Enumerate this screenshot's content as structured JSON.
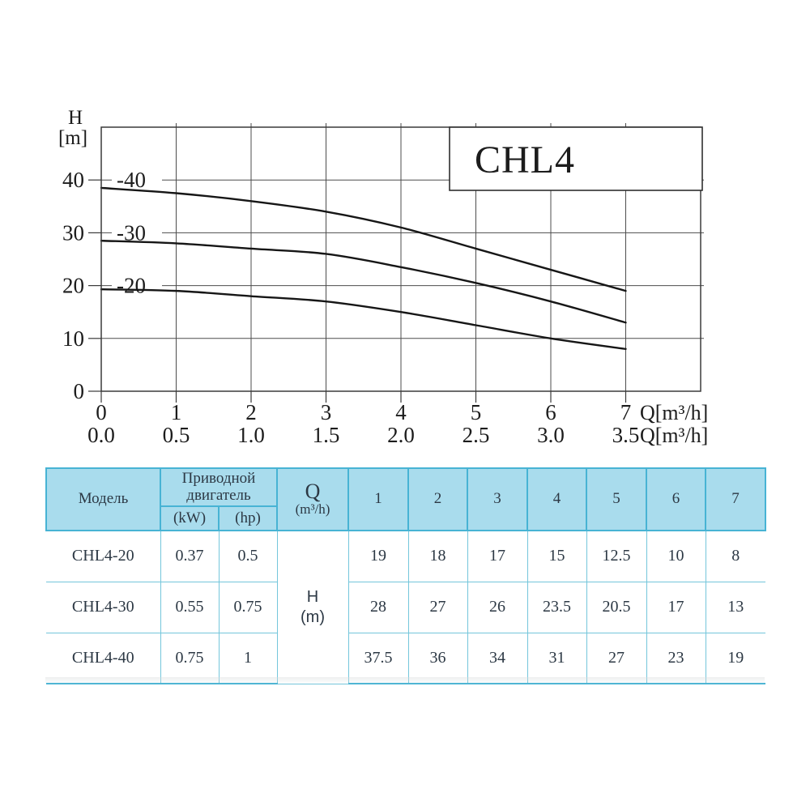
{
  "title": "CHL4",
  "chart": {
    "y_axis_label_line1": "H",
    "y_axis_label_line2": "[m]",
    "x_axis_unit_row1": "Q[m³/h]",
    "x_axis_unit_row2": "Q[m³/h]",
    "y_ticks": [
      "0",
      "10",
      "20",
      "30",
      "40"
    ],
    "x_ticks_row1": [
      "0",
      "1",
      "2",
      "3",
      "4",
      "5",
      "6",
      "7"
    ],
    "x_ticks_row2": [
      "0.0",
      "0.5",
      "1.0",
      "1.5",
      "2.0",
      "2.5",
      "3.0",
      "3.5"
    ]
  },
  "chart_data": {
    "type": "line",
    "title": "CHL4",
    "xlabel": "Q[m³/h]",
    "ylabel": "H [m]",
    "xlim": [
      0,
      8
    ],
    "ylim": [
      0,
      50
    ],
    "grid": true,
    "x": [
      0,
      1,
      2,
      3,
      4,
      5,
      6,
      7
    ],
    "series": [
      {
        "name": "-40",
        "label_h": 40,
        "values": [
          38.5,
          37.5,
          36,
          34,
          31,
          27,
          23,
          19
        ]
      },
      {
        "name": "-30",
        "label_h": 30,
        "values": [
          28.5,
          28,
          27,
          26,
          23.5,
          20.5,
          17,
          13
        ]
      },
      {
        "name": "-20",
        "label_h": 20,
        "values": [
          19.3,
          19,
          18,
          17,
          15,
          12.5,
          10,
          8
        ]
      }
    ]
  },
  "table": {
    "headers": {
      "model": "Модель",
      "motor": "Приводной двигатель",
      "kw": "(kW)",
      "hp": "(hp)",
      "q_line1": "Q",
      "q_line2": "(m³/h)",
      "flow_cols": [
        "1",
        "2",
        "3",
        "4",
        "5",
        "6",
        "7"
      ],
      "h_line1": "H",
      "h_line2": "(m)"
    },
    "rows": [
      {
        "model": "CHL4-20",
        "kw": "0.37",
        "hp": "0.5",
        "v": [
          "19",
          "18",
          "17",
          "15",
          "12.5",
          "10",
          "8"
        ]
      },
      {
        "model": "CHL4-30",
        "kw": "0.55",
        "hp": "0.75",
        "v": [
          "28",
          "27",
          "26",
          "23.5",
          "20.5",
          "17",
          "13"
        ]
      },
      {
        "model": "CHL4-40",
        "kw": "0.75",
        "hp": "1",
        "v": [
          "37.5",
          "36",
          "34",
          "31",
          "27",
          "23",
          "19"
        ]
      }
    ]
  },
  "colors": {
    "table_header_bg": "#a9dced",
    "table_border": "#47b3d4",
    "curve": "#161616",
    "grid": "#4d4d4d"
  }
}
